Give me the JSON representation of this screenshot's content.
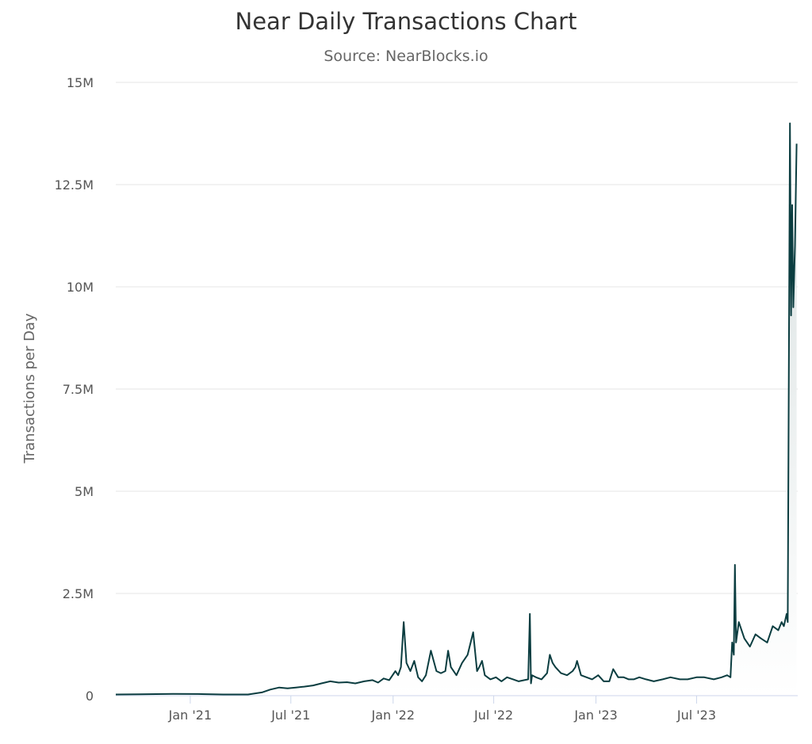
{
  "chart_data": {
    "type": "area",
    "title": "Near Daily Transactions Chart",
    "subtitle": "Source: NearBlocks.io",
    "ylabel": "Transactions per Day",
    "xlabel": "",
    "ylim": [
      0,
      15000000
    ],
    "xlim": [
      "2020-08-20",
      "2023-12-30"
    ],
    "y_ticks": [
      {
        "value": 0,
        "label": "0"
      },
      {
        "value": 2500000,
        "label": "2.5M"
      },
      {
        "value": 5000000,
        "label": "5M"
      },
      {
        "value": 7500000,
        "label": "7.5M"
      },
      {
        "value": 10000000,
        "label": "10M"
      },
      {
        "value": 12500000,
        "label": "12.5M"
      },
      {
        "value": 15000000,
        "label": "15M"
      }
    ],
    "x_ticks": [
      {
        "value": "2021-01-01",
        "label": "Jan '21"
      },
      {
        "value": "2021-07-01",
        "label": "Jul '21"
      },
      {
        "value": "2022-01-01",
        "label": "Jan '22"
      },
      {
        "value": "2022-07-01",
        "label": "Jul '22"
      },
      {
        "value": "2023-01-01",
        "label": "Jan '23"
      },
      {
        "value": "2023-07-01",
        "label": "Jul '23"
      }
    ],
    "grid": true,
    "legend": "none",
    "colors": {
      "line": "#0b3d40",
      "fill_top": "#d8e0e0",
      "fill_bottom": "#ffffff",
      "grid": "#e6e6e6",
      "axis": "#ccd6eb"
    },
    "series": [
      {
        "x": [
          "2020-08-20",
          "2020-10-01",
          "2020-12-01",
          "2021-01-15",
          "2021-03-01",
          "2021-04-15",
          "2021-05-10",
          "2021-05-25",
          "2021-06-10",
          "2021-06-25",
          "2021-07-10",
          "2021-07-25",
          "2021-08-10",
          "2021-08-25",
          "2021-09-10",
          "2021-09-25",
          "2021-10-10",
          "2021-10-25",
          "2021-11-10",
          "2021-11-25",
          "2021-12-05",
          "2021-12-15",
          "2021-12-25",
          "2022-01-05",
          "2022-01-10",
          "2022-01-15",
          "2022-01-20",
          "2022-01-25",
          "2022-02-01",
          "2022-02-08",
          "2022-02-15",
          "2022-02-22",
          "2022-03-01",
          "2022-03-10",
          "2022-03-20",
          "2022-03-28",
          "2022-04-05",
          "2022-04-10",
          "2022-04-15",
          "2022-04-25",
          "2022-05-05",
          "2022-05-15",
          "2022-05-25",
          "2022-06-01",
          "2022-06-05",
          "2022-06-10",
          "2022-06-15",
          "2022-06-25",
          "2022-07-05",
          "2022-07-15",
          "2022-07-25",
          "2022-08-05",
          "2022-08-15",
          "2022-08-25",
          "2022-09-01",
          "2022-09-04",
          "2022-09-06",
          "2022-09-08",
          "2022-09-15",
          "2022-09-25",
          "2022-10-05",
          "2022-10-10",
          "2022-10-15",
          "2022-10-20",
          "2022-10-30",
          "2022-11-10",
          "2022-11-20",
          "2022-11-25",
          "2022-11-28",
          "2022-12-05",
          "2022-12-15",
          "2022-12-25",
          "2023-01-05",
          "2023-01-15",
          "2023-01-25",
          "2023-02-01",
          "2023-02-10",
          "2023-02-20",
          "2023-03-01",
          "2023-03-10",
          "2023-03-20",
          "2023-04-01",
          "2023-04-15",
          "2023-05-01",
          "2023-05-15",
          "2023-06-01",
          "2023-06-15",
          "2023-07-01",
          "2023-07-15",
          "2023-08-01",
          "2023-08-15",
          "2023-08-25",
          "2023-08-31",
          "2023-09-03",
          "2023-09-06",
          "2023-09-08",
          "2023-09-10",
          "2023-09-15",
          "2023-09-25",
          "2023-10-05",
          "2023-10-15",
          "2023-10-25",
          "2023-11-05",
          "2023-11-15",
          "2023-11-25",
          "2023-12-01",
          "2023-12-05",
          "2023-12-10",
          "2023-12-12",
          "2023-12-14",
          "2023-12-16",
          "2023-12-18",
          "2023-12-20",
          "2023-12-22",
          "2023-12-25",
          "2023-12-28"
        ],
        "y": [
          30000,
          35000,
          45000,
          40000,
          30000,
          30000,
          80000,
          150000,
          200000,
          180000,
          200000,
          220000,
          250000,
          300000,
          350000,
          320000,
          330000,
          300000,
          350000,
          380000,
          320000,
          420000,
          380000,
          600000,
          500000,
          700000,
          1800000,
          800000,
          600000,
          850000,
          450000,
          350000,
          500000,
          1100000,
          600000,
          550000,
          600000,
          1100000,
          700000,
          500000,
          800000,
          1000000,
          1550000,
          600000,
          700000,
          850000,
          500000,
          400000,
          450000,
          350000,
          450000,
          400000,
          350000,
          380000,
          400000,
          2000000,
          300000,
          500000,
          450000,
          400000,
          550000,
          1000000,
          800000,
          700000,
          550000,
          500000,
          600000,
          700000,
          850000,
          500000,
          450000,
          400000,
          500000,
          350000,
          350000,
          650000,
          450000,
          450000,
          400000,
          400000,
          450000,
          400000,
          350000,
          400000,
          450000,
          400000,
          400000,
          450000,
          450000,
          400000,
          450000,
          500000,
          450000,
          1300000,
          1000000,
          3200000,
          1300000,
          1800000,
          1400000,
          1200000,
          1500000,
          1400000,
          1300000,
          1700000,
          1600000,
          1800000,
          1700000,
          2000000,
          1800000,
          8000000,
          14000000,
          9300000,
          12000000,
          9500000,
          11000000,
          13500000
        ]
      }
    ]
  }
}
